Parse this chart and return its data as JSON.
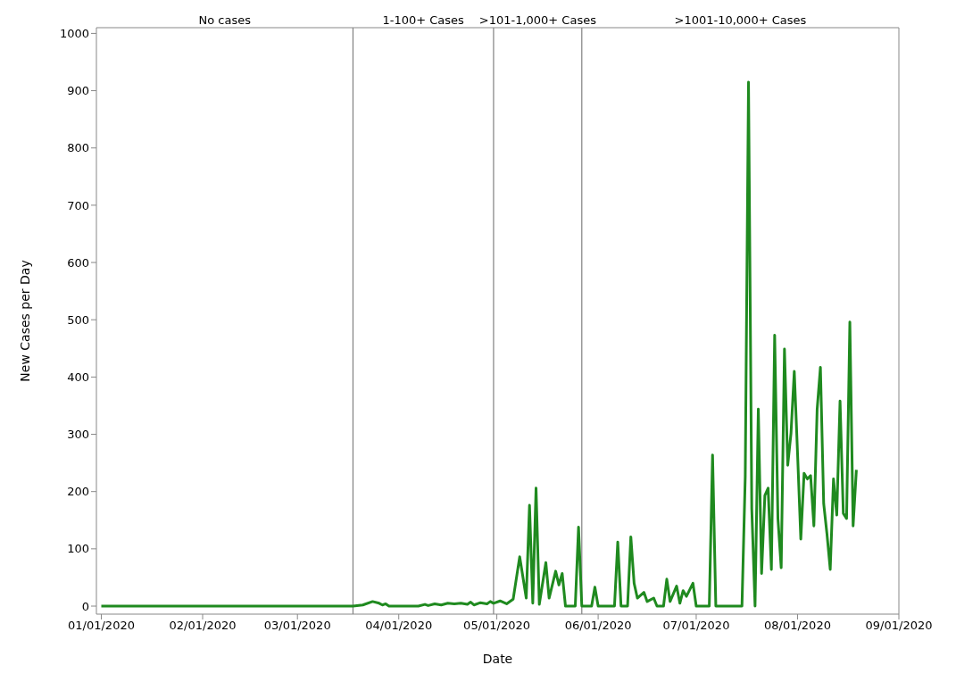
{
  "chart_data": {
    "type": "line",
    "xlabel": "Date",
    "ylabel": "New Cases per Day",
    "x": [
      "2020-01-01",
      "2020-03-18",
      "2020-03-21",
      "2020-03-24",
      "2020-03-26",
      "2020-03-27",
      "2020-03-28",
      "2020-03-29",
      "2020-04-07",
      "2020-04-09",
      "2020-04-10",
      "2020-04-12",
      "2020-04-14",
      "2020-04-16",
      "2020-04-18",
      "2020-04-20",
      "2020-04-22",
      "2020-04-23",
      "2020-04-24",
      "2020-04-26",
      "2020-04-28",
      "2020-04-29",
      "2020-04-30",
      "2020-05-02",
      "2020-05-04",
      "2020-05-06",
      "2020-05-08",
      "2020-05-10",
      "2020-05-11",
      "2020-05-12",
      "2020-05-13",
      "2020-05-14",
      "2020-05-16",
      "2020-05-17",
      "2020-05-19",
      "2020-05-20",
      "2020-05-21",
      "2020-05-22",
      "2020-05-25",
      "2020-05-26",
      "2020-05-27",
      "2020-05-30",
      "2020-05-31",
      "2020-06-01",
      "2020-06-06",
      "2020-06-07",
      "2020-06-08",
      "2020-06-10",
      "2020-06-11",
      "2020-06-12",
      "2020-06-13",
      "2020-06-15",
      "2020-06-16",
      "2020-06-18",
      "2020-06-19",
      "2020-06-21",
      "2020-06-22",
      "2020-06-23",
      "2020-06-25",
      "2020-06-26",
      "2020-06-27",
      "2020-06-28",
      "2020-06-30",
      "2020-07-01",
      "2020-07-05",
      "2020-07-06",
      "2020-07-07",
      "2020-07-15",
      "2020-07-16",
      "2020-07-17",
      "2020-07-18",
      "2020-07-19",
      "2020-07-20",
      "2020-07-21",
      "2020-07-22",
      "2020-07-23",
      "2020-07-24",
      "2020-07-25",
      "2020-07-26",
      "2020-07-27",
      "2020-07-28",
      "2020-07-29",
      "2020-07-30",
      "2020-07-31",
      "2020-08-01",
      "2020-08-02",
      "2020-08-03",
      "2020-08-04",
      "2020-08-05",
      "2020-08-06",
      "2020-08-07",
      "2020-08-08",
      "2020-08-09",
      "2020-08-10",
      "2020-08-11",
      "2020-08-12",
      "2020-08-13",
      "2020-08-14",
      "2020-08-15",
      "2020-08-16",
      "2020-08-17",
      "2020-08-18",
      "2020-08-19"
    ],
    "series": [
      {
        "color": "#1f8a1f",
        "values": [
          0,
          0,
          2,
          8,
          5,
          2,
          4,
          0,
          0,
          3,
          1,
          4,
          2,
          5,
          4,
          5,
          3,
          7,
          2,
          6,
          4,
          8,
          5,
          9,
          4,
          12,
          86,
          14,
          176,
          5,
          206,
          3,
          76,
          14,
          61,
          37,
          57,
          0,
          0,
          138,
          0,
          0,
          33,
          0,
          0,
          112,
          0,
          0,
          121,
          40,
          14,
          24,
          8,
          14,
          0,
          0,
          47,
          8,
          35,
          5,
          27,
          17,
          40,
          0,
          0,
          264,
          0,
          0,
          226,
          915,
          170,
          0,
          344,
          57,
          193,
          206,
          64,
          473,
          153,
          67,
          449,
          246,
          302,
          410,
          267,
          117,
          232,
          222,
          228,
          140,
          344,
          417,
          179,
          126,
          64,
          222,
          159,
          358,
          162,
          153,
          496,
          140,
          238
        ]
      }
    ],
    "xlim": [
      "2019-12-30T12:00",
      "2020-09-01"
    ],
    "xticks": [
      {
        "value": "2020-01-01",
        "label": "01/01/2020"
      },
      {
        "value": "2020-02-01",
        "label": "02/01/2020"
      },
      {
        "value": "2020-03-01",
        "label": "03/01/2020"
      },
      {
        "value": "2020-04-01",
        "label": "04/01/2020"
      },
      {
        "value": "2020-05-01",
        "label": "05/01/2020"
      },
      {
        "value": "2020-06-01",
        "label": "06/01/2020"
      },
      {
        "value": "2020-07-01",
        "label": "07/01/2020"
      },
      {
        "value": "2020-08-01",
        "label": "08/01/2020"
      },
      {
        "value": "2020-09-01",
        "label": "09/01/2020"
      }
    ],
    "ylim": [
      -14,
      1010
    ],
    "yticks": [
      0,
      100,
      200,
      300,
      400,
      500,
      600,
      700,
      800,
      900,
      1000
    ],
    "grid": false,
    "legend": false,
    "marker": "none",
    "line_style": "solid",
    "ref_lines": [
      {
        "axis": "x",
        "value": "2020-03-18",
        "color": "#808080"
      },
      {
        "axis": "x",
        "value": "2020-04-30",
        "color": "#808080"
      },
      {
        "axis": "x",
        "value": "2020-05-27",
        "color": "#808080"
      }
    ],
    "annotations": [
      "No cases",
      "1-100+ Cases",
      ">101-1,000+ Cases",
      ">1001-10,000+ Cases"
    ]
  }
}
